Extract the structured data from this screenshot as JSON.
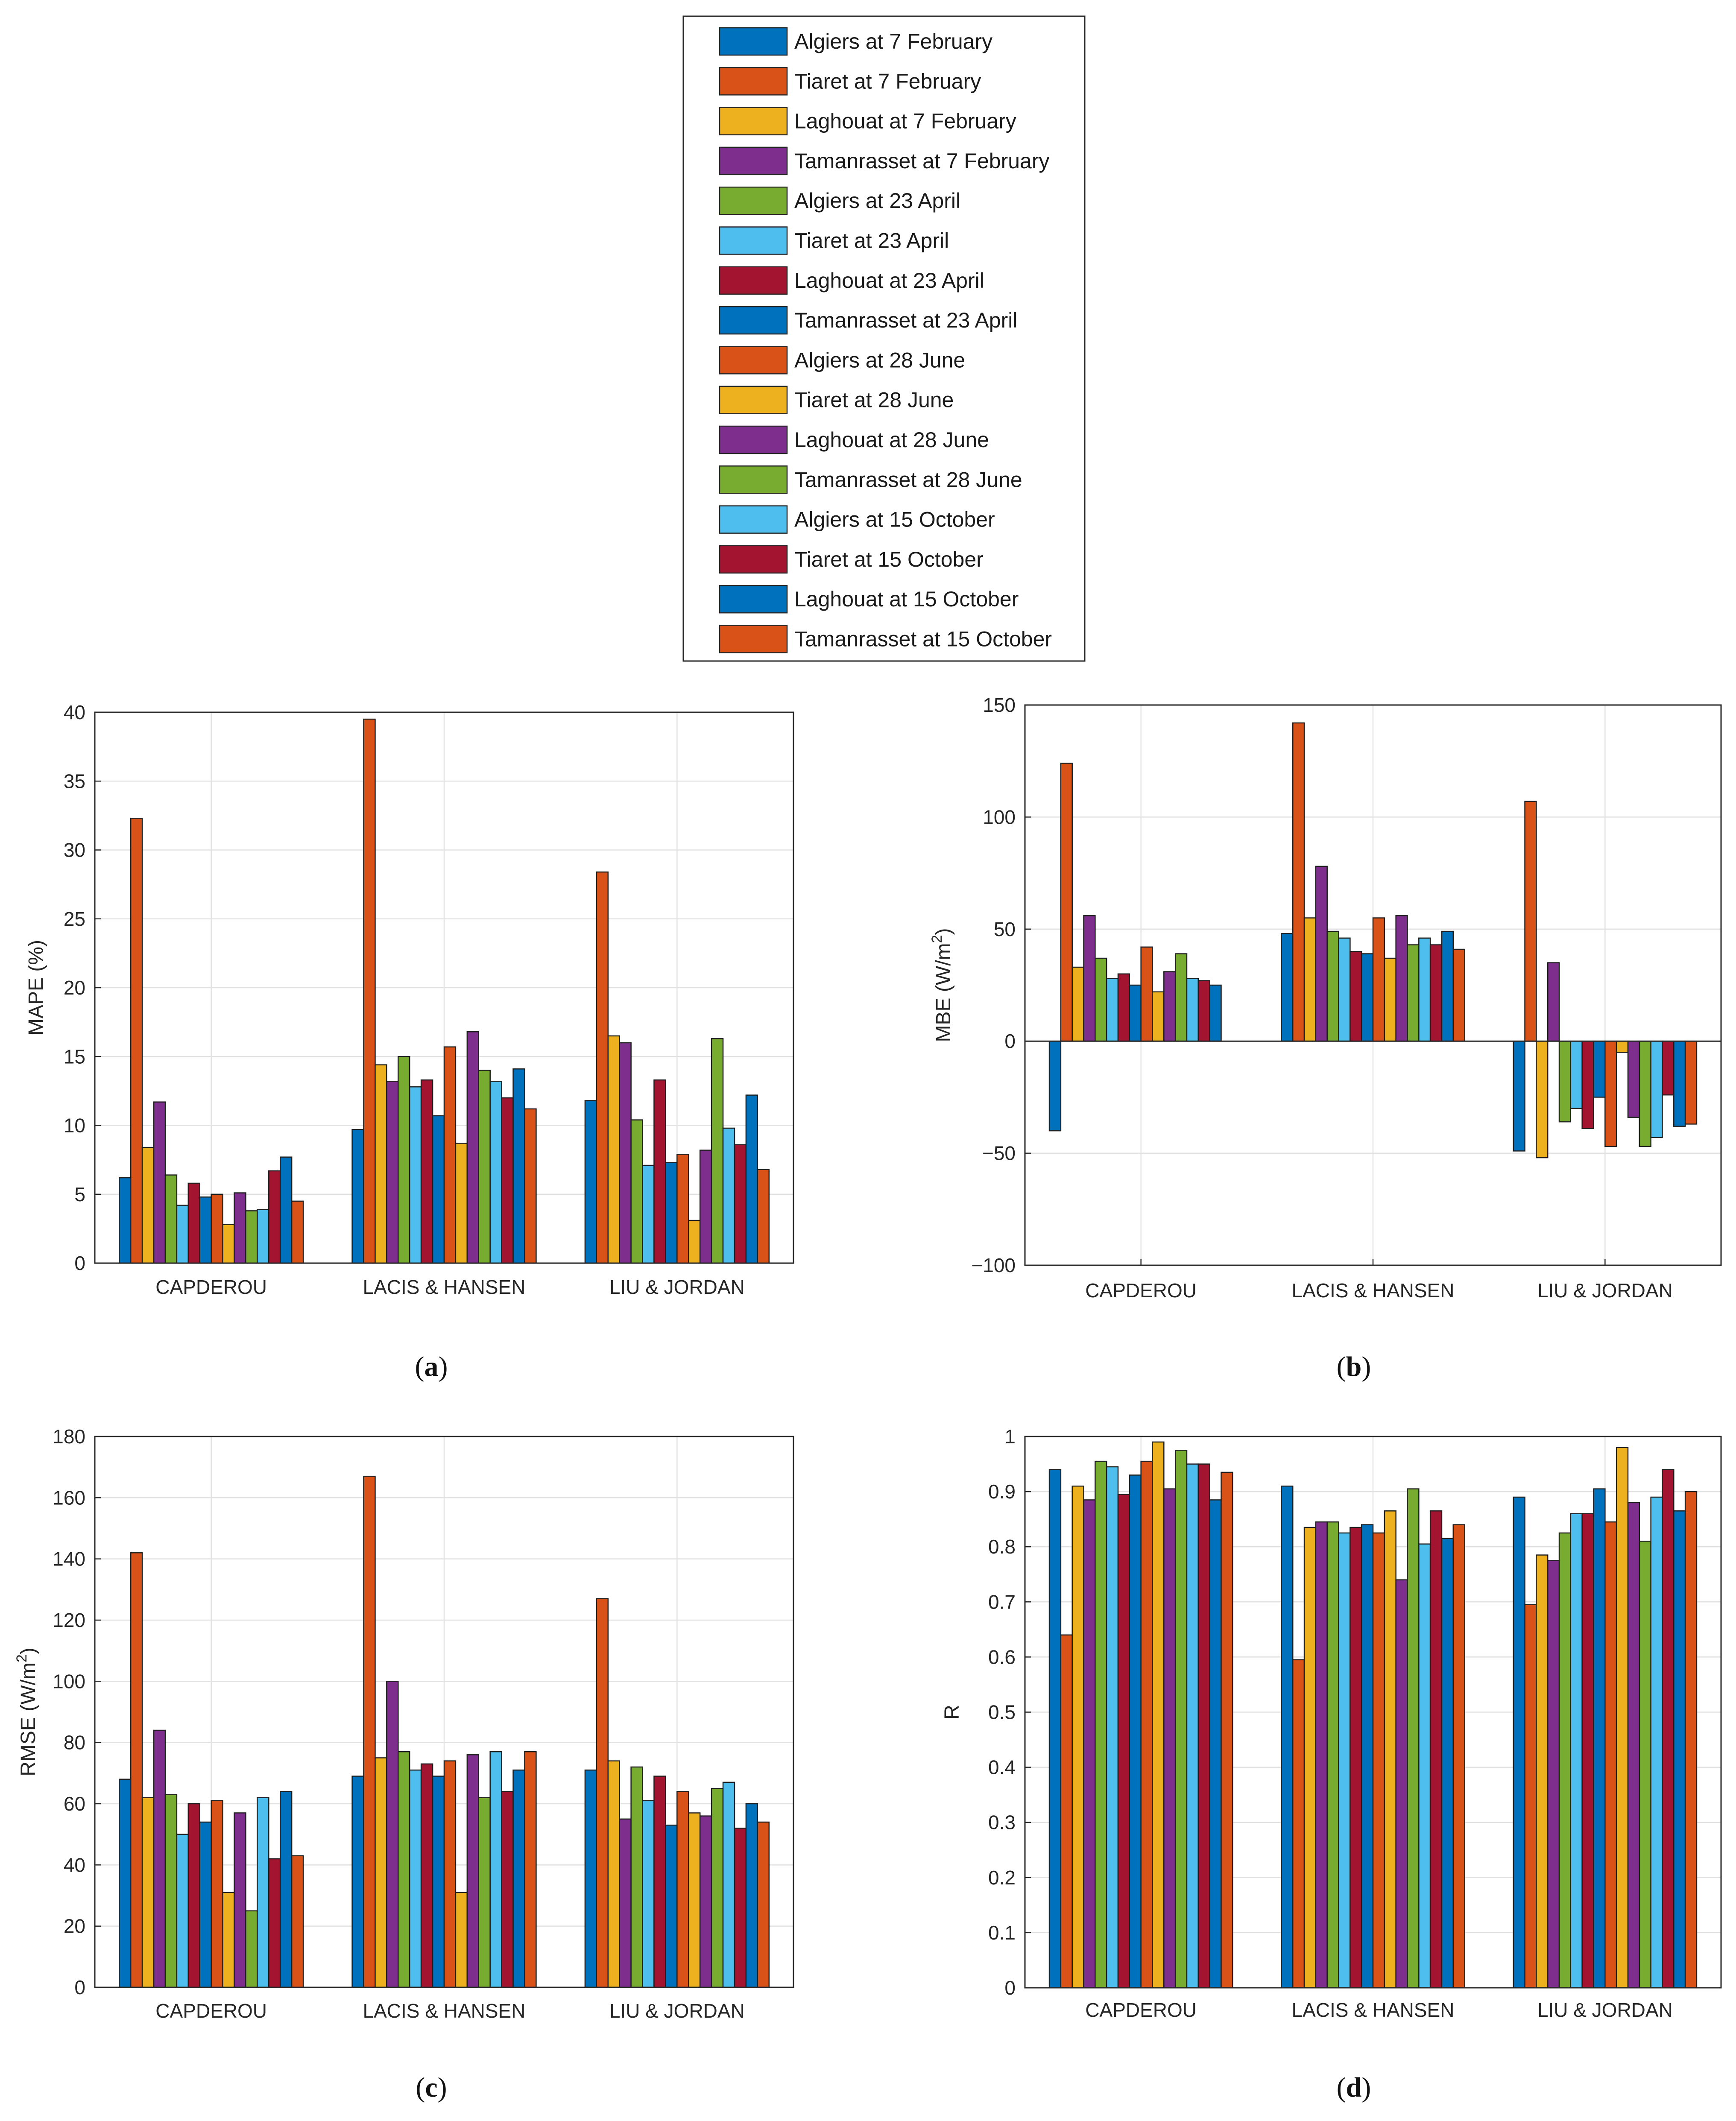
{
  "legend": [
    "Algiers at 7 February",
    "Tiaret at 7 February",
    "Laghouat at 7 February",
    "Tamanrasset at 7 February",
    "Algiers at 23 April",
    "Tiaret at 23 April",
    "Laghouat at 23 April",
    "Tamanrasset at 23 April",
    "Algiers at 28 June",
    "Tiaret at 28 June",
    "Laghouat at 28 June",
    "Tamanrasset at 28 June",
    "Algiers at 15 October",
    "Tiaret at 15 October",
    "Laghouat at 15 October",
    "Tamanrasset at 15 October"
  ],
  "colors": [
    "#0072BD",
    "#D95319",
    "#EDB120",
    "#7E2F8E",
    "#77AC30",
    "#4DBEEE",
    "#A2142F",
    "#0072BD",
    "#D95319",
    "#EDB120",
    "#7E2F8E",
    "#77AC30",
    "#4DBEEE",
    "#A2142F",
    "#0072BD",
    "#D95319"
  ],
  "chart_data": [
    {
      "id": "a",
      "caption": {
        "open": "(",
        "letter": "a",
        "close": ")"
      },
      "type": "bar",
      "categories": [
        "CAPDEROU",
        "LACIS & HANSEN",
        "LIU & JORDAN"
      ],
      "ylabel": "MAPE (%)",
      "ylim": [
        0,
        40
      ],
      "yticks": [
        0,
        5,
        10,
        15,
        20,
        25,
        30,
        35,
        40
      ],
      "grid": true,
      "values": [
        [
          6.2,
          32.3,
          8.4,
          11.7,
          6.4,
          4.2,
          5.8,
          4.8,
          5.0,
          2.8,
          5.1,
          3.8,
          3.9,
          6.7,
          7.7,
          4.5
        ],
        [
          9.7,
          39.5,
          14.4,
          13.2,
          15.0,
          12.8,
          13.3,
          10.7,
          15.7,
          8.7,
          16.8,
          14.0,
          13.2,
          12.0,
          14.1,
          11.2
        ],
        [
          11.8,
          28.4,
          16.5,
          16.0,
          10.4,
          7.1,
          13.3,
          7.3,
          7.9,
          3.1,
          8.2,
          16.3,
          9.8,
          8.6,
          12.2,
          6.8
        ]
      ]
    },
    {
      "id": "b",
      "caption": {
        "open": "(",
        "letter": "b",
        "close": ")"
      },
      "type": "bar",
      "categories": [
        "CAPDEROU",
        "LACIS & HANSEN",
        "LIU & JORDAN"
      ],
      "ylabel": "MBE (W/m",
      "ylabel_sup": "2",
      "ylabel_close": ")",
      "ylim": [
        -100,
        150
      ],
      "yticks": [
        -100,
        -50,
        0,
        50,
        100,
        150
      ],
      "grid": true,
      "values": [
        [
          -40,
          124,
          33,
          56,
          37,
          28,
          30,
          25,
          42,
          22,
          31,
          39,
          28,
          27,
          25,
          0
        ],
        [
          48,
          142,
          55,
          78,
          49,
          46,
          40,
          39,
          55,
          37,
          56,
          43,
          46,
          43,
          49,
          41
        ],
        [
          -49,
          107,
          -52,
          35,
          -36,
          -30,
          -39,
          -25,
          -47,
          -5,
          -34,
          -47,
          -43,
          -24,
          -38,
          -37
        ]
      ]
    },
    {
      "id": "c",
      "caption": {
        "open": "(",
        "letter": "c",
        "close": ")"
      },
      "type": "bar",
      "categories": [
        "CAPDEROU",
        "LACIS & HANSEN",
        "LIU & JORDAN"
      ],
      "ylabel": "RMSE (W/m",
      "ylabel_sup": "2",
      "ylabel_close": ")",
      "ylim": [
        0,
        180
      ],
      "yticks": [
        0,
        20,
        40,
        60,
        80,
        100,
        120,
        140,
        160,
        180
      ],
      "grid": true,
      "values": [
        [
          68,
          142,
          62,
          84,
          63,
          50,
          60,
          54,
          61,
          31,
          57,
          25,
          62,
          42,
          64,
          43
        ],
        [
          69,
          167,
          75,
          100,
          77,
          71,
          73,
          69,
          74,
          31,
          76,
          62,
          77,
          64,
          71,
          77
        ],
        [
          71,
          127,
          74,
          55,
          72,
          61,
          69,
          53,
          64,
          57,
          56,
          65,
          67,
          52,
          60,
          54
        ]
      ]
    },
    {
      "id": "d",
      "caption": {
        "open": "(",
        "letter": "d",
        "close": ")"
      },
      "type": "bar",
      "categories": [
        "CAPDEROU",
        "LACIS & HANSEN",
        "LIU & JORDAN"
      ],
      "ylabel": "R",
      "ylim": [
        0,
        1
      ],
      "yticks": [
        0,
        0.1,
        0.2,
        0.3,
        0.4,
        0.5,
        0.6,
        0.7,
        0.8,
        0.9,
        1
      ],
      "grid": true,
      "values": [
        [
          0.94,
          0.64,
          0.91,
          0.885,
          0.955,
          0.945,
          0.895,
          0.93,
          0.955,
          0.99,
          0.905,
          0.975,
          0.95,
          0.95,
          0.885,
          0.935
        ],
        [
          0.91,
          0.595,
          0.835,
          0.845,
          0.845,
          0.825,
          0.835,
          0.84,
          0.825,
          0.865,
          0.74,
          0.905,
          0.805,
          0.865,
          0.815,
          0.84
        ],
        [
          0.89,
          0.695,
          0.785,
          0.775,
          0.825,
          0.86,
          0.86,
          0.905,
          0.845,
          0.98,
          0.88,
          0.81,
          0.89,
          0.94,
          0.865,
          0.9
        ]
      ]
    }
  ]
}
